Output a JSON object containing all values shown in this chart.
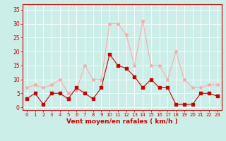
{
  "hours": [
    0,
    1,
    2,
    3,
    4,
    5,
    6,
    7,
    8,
    9,
    10,
    11,
    12,
    13,
    14,
    15,
    16,
    17,
    18,
    19,
    20,
    21,
    22,
    23
  ],
  "wind_avg": [
    3,
    5,
    1,
    5,
    5,
    3,
    7,
    5,
    3,
    7,
    19,
    15,
    14,
    11,
    7,
    10,
    7,
    7,
    1,
    1,
    1,
    5,
    5,
    4
  ],
  "wind_gust": [
    7,
    8,
    7,
    8,
    10,
    5,
    6,
    15,
    10,
    10,
    30,
    30,
    26,
    15,
    31,
    15,
    15,
    10,
    20,
    10,
    7,
    7,
    8,
    8
  ],
  "avg_color": "#cc0000",
  "gust_color": "#ffaaaa",
  "bg_color": "#cceee8",
  "grid_color": "#ffffff",
  "axis_color": "#cc0000",
  "xlabel": "Vent moyen/en rafales ( km/h )",
  "yticks": [
    0,
    5,
    10,
    15,
    20,
    25,
    30,
    35
  ],
  "ylim": [
    -1,
    37
  ],
  "xlim": [
    -0.5,
    23.5
  ],
  "figsize": [
    3.2,
    2.0
  ],
  "dpi": 100
}
